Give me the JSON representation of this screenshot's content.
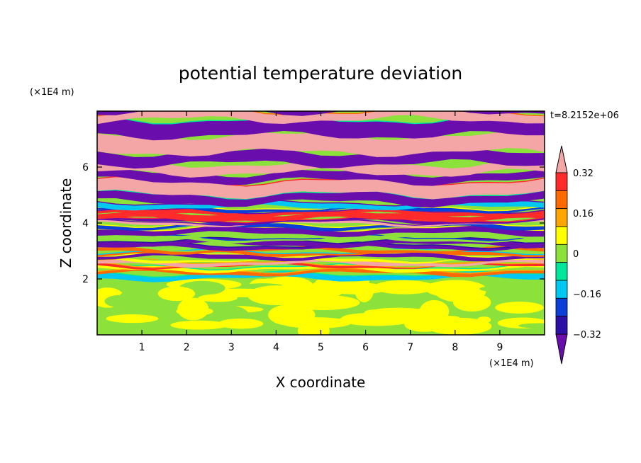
{
  "chart_data": {
    "type": "heatmap",
    "title": "potential temperature deviation",
    "xlabel": "X coordinate",
    "ylabel": "Z coordinate",
    "x_unit": "(×1E4 m)",
    "y_unit": "(×1E4 m)",
    "time_label": "t=8.2152e+06",
    "xlim": [
      0,
      10
    ],
    "ylim": [
      0,
      8
    ],
    "x_ticks": [
      "1",
      "2",
      "3",
      "4",
      "5",
      "6",
      "7",
      "8",
      "9"
    ],
    "y_ticks": [
      "2",
      "4",
      "6"
    ],
    "colorbar": {
      "levels": [
        -0.4,
        -0.32,
        -0.24,
        -0.16,
        -0.08,
        0,
        0.08,
        0.16,
        0.24,
        0.32,
        0.4
      ],
      "tick_labels": [
        "0.32",
        "0.16",
        "0",
        "−0.16",
        "−0.32"
      ],
      "colors": [
        "#6a0dad",
        "#2b0fa6",
        "#0a3fd8",
        "#00c8f0",
        "#00e69a",
        "#8ce23a",
        "#ffff00",
        "#ffa500",
        "#ff6a00",
        "#ff2b2b",
        "#f4a6a6"
      ],
      "extend": "both"
    },
    "regions": [
      {
        "z_range": [
          0,
          2
        ],
        "description_values": [
          0,
          0.08
        ],
        "pattern": "mostly 0 to 0.08 with patches"
      },
      {
        "z_range": [
          2,
          4.6
        ],
        "description_values": [
          -0.4,
          0.4
        ],
        "pattern": "turbulent mixed layers"
      },
      {
        "z_range": [
          4.6,
          8
        ],
        "description_values": [
          -0.4,
          0.4
        ],
        "pattern": "alternating horizontal bands"
      }
    ]
  }
}
